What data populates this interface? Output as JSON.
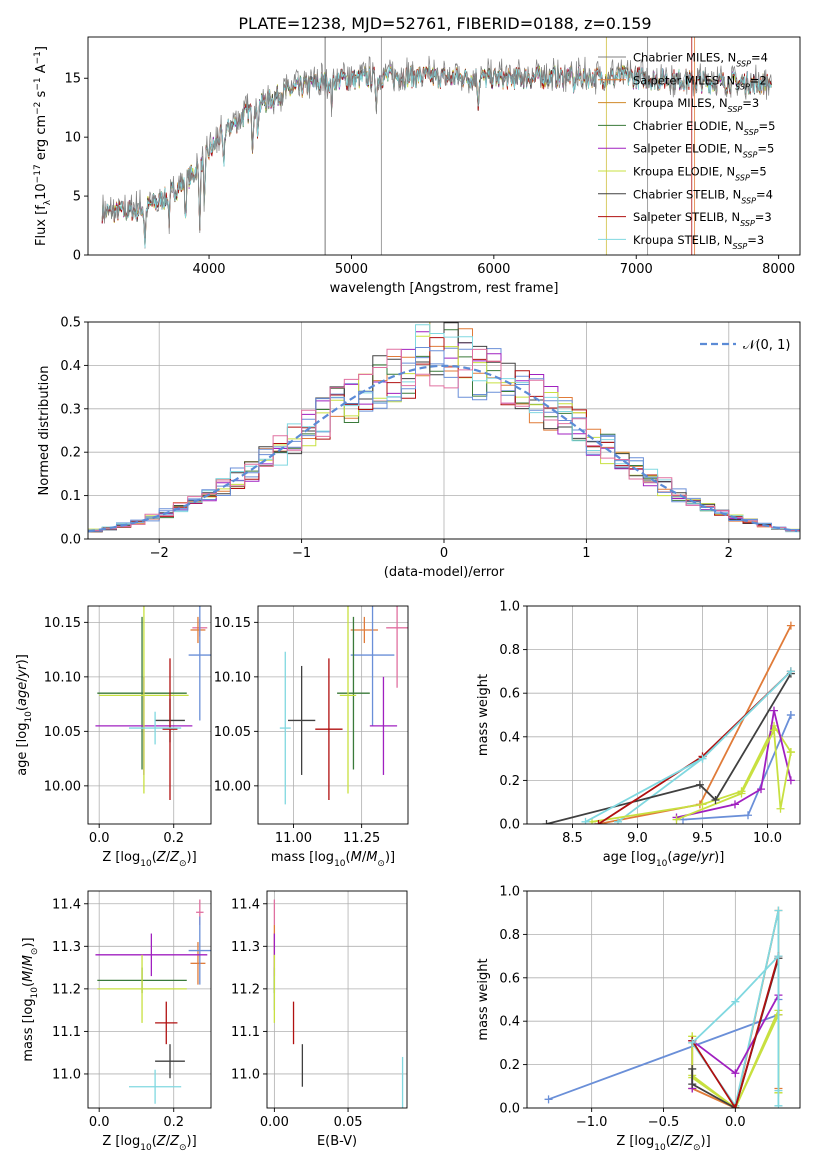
{
  "page_title": "PLATE=1238, MJD=52761, FIBERID=0188, z=0.159",
  "models": [
    {
      "name": "Chabrier MILES, N$_{SSP}$=4",
      "nssp": "4",
      "label_main": "Chabrier MILES, N",
      "color": "#808080"
    },
    {
      "name": "Salpeter MILES, N$_{SSP}$=2",
      "nssp": "2",
      "label_main": "Salpeter MILES, N",
      "color": "#e07b39"
    },
    {
      "name": "Kroupa MILES, N$_{SSP}$=3",
      "nssp": "3",
      "label_main": "Kroupa MILES, N",
      "color": "#d08a2a"
    },
    {
      "name": "Chabrier ELODIE, N$_{SSP}$=5",
      "nssp": "5",
      "label_main": "Chabrier ELODIE, N",
      "color": "#3a7a3a"
    },
    {
      "name": "Salpeter ELODIE, N$_{SSP}$=5",
      "nssp": "5",
      "label_main": "Salpeter ELODIE, N",
      "color": "#a020c0"
    },
    {
      "name": "Kroupa ELODIE, N$_{SSP}$=5",
      "nssp": "5",
      "label_main": "Kroupa ELODIE, N",
      "color": "#c8e040"
    },
    {
      "name": "Chabrier STELIB, N$_{SSP}$=4",
      "nssp": "4",
      "label_main": "Chabrier STELIB, N",
      "color": "#404040"
    },
    {
      "name": "Salpeter STELIB, N$_{SSP}$=3",
      "nssp": "3",
      "label_main": "Salpeter STELIB, N",
      "color": "#b01010"
    },
    {
      "name": "Kroupa STELIB, N$_{SSP}$=3",
      "nssp": "3",
      "label_main": "Kroupa STELIB, N",
      "color": "#80d8e0"
    }
  ],
  "nssp_sub": "SSP",
  "chart_data": [
    {
      "type": "line",
      "id": "spectrum",
      "xlabel": "wavelength [Angstrom, rest frame]",
      "ylabel": "Flux [f$_\\lambda$10$^{-17}$ erg cm$^{-2}$ s$^{-1}$ A$^{-1}$]",
      "xlim": [
        3150,
        8150
      ],
      "ylim": [
        0,
        18.5
      ],
      "xticks": [
        4000,
        5000,
        6000,
        7000,
        8000
      ],
      "yticks": [
        0,
        5,
        10,
        15
      ],
      "spectrum_shape": {
        "x": [
          3250,
          3500,
          3700,
          3900,
          4100,
          4300,
          4500,
          4700,
          4900,
          5100,
          5300,
          5500,
          5700,
          5900,
          6100,
          6300,
          6500,
          6700,
          6900,
          7100,
          7300,
          7500,
          7700,
          7900
        ],
        "y": [
          3.8,
          3.9,
          5.0,
          7.2,
          10.5,
          12.5,
          13.8,
          14.6,
          15.0,
          15.2,
          15.3,
          15.3,
          15.2,
          15.2,
          15.1,
          15.2,
          15.3,
          15.2,
          15.3,
          15.1,
          15.0,
          14.8,
          14.8,
          14.7
        ]
      },
      "grid": false
    },
    {
      "type": "bar",
      "id": "residual-histogram",
      "xlabel": "(data-model)/error",
      "ylabel": "Normed distribution",
      "xlim": [
        -2.5,
        2.5
      ],
      "ylim": [
        0,
        0.5
      ],
      "xticks": [
        -2,
        -1,
        0,
        1,
        2
      ],
      "yticks": [
        0,
        0.1,
        0.2,
        0.3,
        0.4,
        0.5
      ],
      "legend": "$\\mathcal{N}(0,1)$",
      "grid": true
    },
    {
      "type": "scatter",
      "id": "age-vs-Z",
      "xlabel": "Z [log$_{10}$(Z/Z$_\\odot$)]",
      "ylabel": "age  [log$_{10}$(age/yr)]",
      "xlim": [
        -0.03,
        0.3
      ],
      "ylim": [
        9.965,
        10.165
      ],
      "xticks": [
        0.0,
        0.2
      ],
      "yticks": [
        10.0,
        10.05,
        10.1,
        10.15
      ],
      "grid": true,
      "points": [
        {
          "x": 0.27,
          "y": 10.145,
          "xerr": 0.02,
          "yerr": 0.008
        },
        {
          "x": 0.265,
          "y": 10.143,
          "xerr": 0.02,
          "yerr": 0.012
        },
        {
          "x": 0.27,
          "y": 10.12,
          "xerr": 0.03,
          "yerr": 0.06
        },
        {
          "x": 0.115,
          "y": 10.085,
          "xerr": 0.12,
          "yerr": 0.07
        },
        {
          "x": 0.12,
          "y": 10.055,
          "xerr": 0.13,
          "yerr": 0.045
        },
        {
          "x": 0.12,
          "y": 10.083,
          "xerr": 0.12,
          "yerr": 0.09
        },
        {
          "x": 0.19,
          "y": 10.06,
          "xerr": 0.04,
          "yerr": 0.02
        },
        {
          "x": 0.19,
          "y": 10.052,
          "xerr": 0.02,
          "yerr": 0.065
        },
        {
          "x": 0.15,
          "y": 10.053,
          "xerr": 0.07,
          "yerr": 0.015
        }
      ]
    },
    {
      "type": "scatter",
      "id": "age-vs-mass",
      "xlabel": "mass [log$_{10}$(M/M$_\\odot$)]",
      "ylabel": "",
      "xlim": [
        10.87,
        11.42
      ],
      "ylim": [
        9.965,
        10.165
      ],
      "xticks": [
        11.0,
        11.25
      ],
      "yticks": [
        10.0,
        10.05,
        10.1,
        10.15
      ],
      "grid": true,
      "points": [
        {
          "x": 11.38,
          "y": 10.145,
          "xerr": 0.04,
          "yerr": 0.055
        },
        {
          "x": 11.26,
          "y": 10.143,
          "xerr": 0.05,
          "yerr": 0.012
        },
        {
          "x": 11.29,
          "y": 10.12,
          "xerr": 0.08,
          "yerr": 0.065
        },
        {
          "x": 11.22,
          "y": 10.085,
          "xerr": 0.06,
          "yerr": 0.07
        },
        {
          "x": 11.33,
          "y": 10.055,
          "xerr": 0.05,
          "yerr": 0.045
        },
        {
          "x": 11.2,
          "y": 10.083,
          "xerr": 0.03,
          "yerr": 0.09
        },
        {
          "x": 11.03,
          "y": 10.06,
          "xerr": 0.05,
          "yerr": 0.05
        },
        {
          "x": 11.13,
          "y": 10.052,
          "xerr": 0.05,
          "yerr": 0.065
        },
        {
          "x": 10.97,
          "y": 10.053,
          "xerr": 0.02,
          "yerr": 0.07
        }
      ]
    },
    {
      "type": "line",
      "id": "mass-weight-vs-age",
      "xlabel": "age  [log$_{10}$(age/yr)]",
      "ylabel": "mass weight",
      "xlim": [
        8.15,
        10.25
      ],
      "ylim": [
        0,
        1.0
      ],
      "xticks": [
        8.5,
        9.0,
        9.5,
        10.0
      ],
      "yticks": [
        0.0,
        0.2,
        0.4,
        0.6,
        0.8,
        1.0
      ],
      "grid": true,
      "series": [
        {
          "x": [
            9.35,
            9.85,
            10.18,
            10.18
          ],
          "y": [
            0.02,
            0.04,
            0.5,
            0.5
          ]
        },
        {
          "x": [
            8.7,
            9.48,
            10.18
          ],
          "y": [
            0.0,
            0.09,
            0.91
          ]
        },
        {
          "x": [
            8.85,
            9.5,
            10.18
          ],
          "y": [
            0.01,
            0.3,
            0.7
          ]
        },
        {
          "x": [
            8.65,
            9.5,
            9.8,
            10.05,
            10.18
          ],
          "y": [
            0.01,
            0.09,
            0.15,
            0.45,
            0.33
          ]
        },
        {
          "x": [
            9.3,
            9.75,
            9.95,
            10.05,
            10.18
          ],
          "y": [
            0.03,
            0.09,
            0.16,
            0.52,
            0.2
          ]
        },
        {
          "x": [
            9.3,
            9.8,
            10.05,
            10.1,
            10.18
          ],
          "y": [
            0.02,
            0.14,
            0.43,
            0.07,
            0.33
          ]
        },
        {
          "x": [
            8.3,
            9.48,
            9.6,
            10.18
          ],
          "y": [
            0.0,
            0.18,
            0.11,
            0.69
          ]
        },
        {
          "x": [
            8.7,
            9.5,
            10.18
          ],
          "y": [
            0.0,
            0.31,
            0.7
          ]
        },
        {
          "x": [
            8.6,
            9.5,
            10.18
          ],
          "y": [
            0.01,
            0.3,
            0.7
          ]
        }
      ]
    },
    {
      "type": "scatter",
      "id": "mass-vs-Z",
      "xlabel": "Z [log$_{10}$(Z/Z$_\\odot$)]",
      "ylabel": "mass [log$_{10}$(M/M$_\\odot$)]",
      "xlim": [
        -0.03,
        0.3
      ],
      "ylim": [
        10.92,
        11.43
      ],
      "xticks": [
        0.0,
        0.2
      ],
      "yticks": [
        11.0,
        11.1,
        11.2,
        11.3,
        11.4
      ],
      "grid": true,
      "points": [
        {
          "x": 0.27,
          "y": 11.38,
          "xerr": 0.01,
          "yerr": 0.03
        },
        {
          "x": 0.265,
          "y": 11.26,
          "xerr": 0.02,
          "yerr": 0.05
        },
        {
          "x": 0.27,
          "y": 11.29,
          "xerr": 0.03,
          "yerr": 0.08
        },
        {
          "x": 0.115,
          "y": 11.22,
          "xerr": 0.12,
          "yerr": 0.03
        },
        {
          "x": 0.14,
          "y": 11.28,
          "xerr": 0.15,
          "yerr": 0.05
        },
        {
          "x": 0.115,
          "y": 11.2,
          "xerr": 0.12,
          "yerr": 0.08
        },
        {
          "x": 0.19,
          "y": 11.03,
          "xerr": 0.04,
          "yerr": 0.04
        },
        {
          "x": 0.18,
          "y": 11.12,
          "xerr": 0.03,
          "yerr": 0.05
        },
        {
          "x": 0.15,
          "y": 10.97,
          "xerr": 0.07,
          "yerr": 0.04
        }
      ]
    },
    {
      "type": "scatter",
      "id": "mass-vs-EBV",
      "xlabel": "E(B-V)",
      "ylabel": "",
      "xlim": [
        -0.005,
        0.09
      ],
      "ylim": [
        10.92,
        11.43
      ],
      "xticks": [
        0.0,
        0.05
      ],
      "yticks": [
        11.0,
        11.1,
        11.2,
        11.3,
        11.4
      ],
      "grid": true,
      "points": [
        {
          "x": 0.0,
          "y": 11.38,
          "xerr": 0.0,
          "yerr": 0.03
        },
        {
          "x": 0.0,
          "y": 11.3,
          "xerr": 0.0,
          "yerr": 0.05
        },
        {
          "x": 0.0,
          "y": 11.2,
          "xerr": 0.0,
          "yerr": 0.05
        },
        {
          "x": 0.0,
          "y": 11.22,
          "xerr": 0.0,
          "yerr": 0.03
        },
        {
          "x": 0.0,
          "y": 11.28,
          "xerr": 0.0,
          "yerr": 0.05
        },
        {
          "x": 0.0,
          "y": 11.2,
          "xerr": 0.0,
          "yerr": 0.08
        },
        {
          "x": 0.019,
          "y": 11.02,
          "xerr": 0.0,
          "yerr": 0.05
        },
        {
          "x": 0.013,
          "y": 11.12,
          "xerr": 0.0,
          "yerr": 0.05
        },
        {
          "x": 0.087,
          "y": 10.98,
          "xerr": 0.0,
          "yerr": 0.06
        }
      ]
    },
    {
      "type": "line",
      "id": "mass-weight-vs-Z",
      "xlabel": "Z [log$_{10}$(Z/Z$_\\odot$)]",
      "ylabel": "mass weight",
      "xlim": [
        -1.45,
        0.45
      ],
      "ylim": [
        0,
        1.0
      ],
      "xticks": [
        -1.0,
        -0.5,
        0.0
      ],
      "yticks": [
        0.0,
        0.2,
        0.4,
        0.6,
        0.8,
        1.0
      ],
      "grid": true,
      "series": [
        {
          "x": [
            -1.3,
            0.3,
            0.3
          ],
          "y": [
            0.04,
            0.43,
            0.5
          ]
        },
        {
          "x": [
            -0.3,
            0.0,
            0.3,
            0.3
          ],
          "y": [
            0.09,
            0.0,
            0.91,
            0.09
          ]
        },
        {
          "x": [
            -0.3,
            0.0,
            0.3,
            0.3
          ],
          "y": [
            0.3,
            0.01,
            0.91,
            0.08
          ]
        },
        {
          "x": [
            -0.3,
            -0.3,
            0.0,
            0.3,
            0.3
          ],
          "y": [
            0.33,
            0.15,
            0.0,
            0.45,
            0.07
          ]
        },
        {
          "x": [
            -0.3,
            -0.3,
            0.0,
            0.3,
            0.3
          ],
          "y": [
            0.09,
            0.31,
            0.16,
            0.52,
            0.43
          ]
        },
        {
          "x": [
            -0.3,
            -0.3,
            0.0,
            0.3,
            0.3
          ],
          "y": [
            0.33,
            0.14,
            0.0,
            0.43,
            0.07
          ]
        },
        {
          "x": [
            -0.3,
            -0.3,
            0.0,
            0.3
          ],
          "y": [
            0.18,
            0.11,
            0.0,
            0.69
          ]
        },
        {
          "x": [
            -0.3,
            0.0,
            0.3
          ],
          "y": [
            0.31,
            0.0,
            0.7
          ]
        },
        {
          "x": [
            -0.3,
            0.0,
            0.3,
            0.3
          ],
          "y": [
            0.3,
            0.49,
            0.7,
            0.01
          ]
        }
      ]
    }
  ]
}
